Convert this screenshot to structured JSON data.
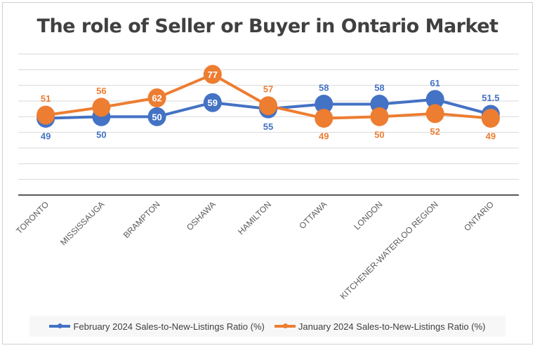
{
  "chart_data": {
    "type": "line",
    "title": "The role of Seller or Buyer in Ontario Market",
    "categories": [
      "TORONTO",
      "MISSISSAUGA",
      "BRAMPTON",
      "OSHAWA",
      "HAMILTON",
      "OTTAWA",
      "LONDON",
      "KITCHENER-WATERLOO REGION",
      "ONTARIO"
    ],
    "series": [
      {
        "name": "February 2024 Sales-to-New-Listings Ratio (%)",
        "color": "#4472c4",
        "values": [
          49,
          50,
          50,
          59,
          55,
          58,
          58,
          61,
          51.5
        ]
      },
      {
        "name": "January 2024 Sales-to-New-Listings Ratio  (%)",
        "color": "#ed7d31",
        "values": [
          51,
          56,
          62,
          77,
          57,
          49,
          50,
          52,
          49
        ]
      }
    ],
    "ylim": [
      0,
      90
    ],
    "y_gridline_step": 10,
    "grid": true,
    "y_axis_labels_shown": false,
    "data_labels": true,
    "legend_placement": "bottom"
  }
}
